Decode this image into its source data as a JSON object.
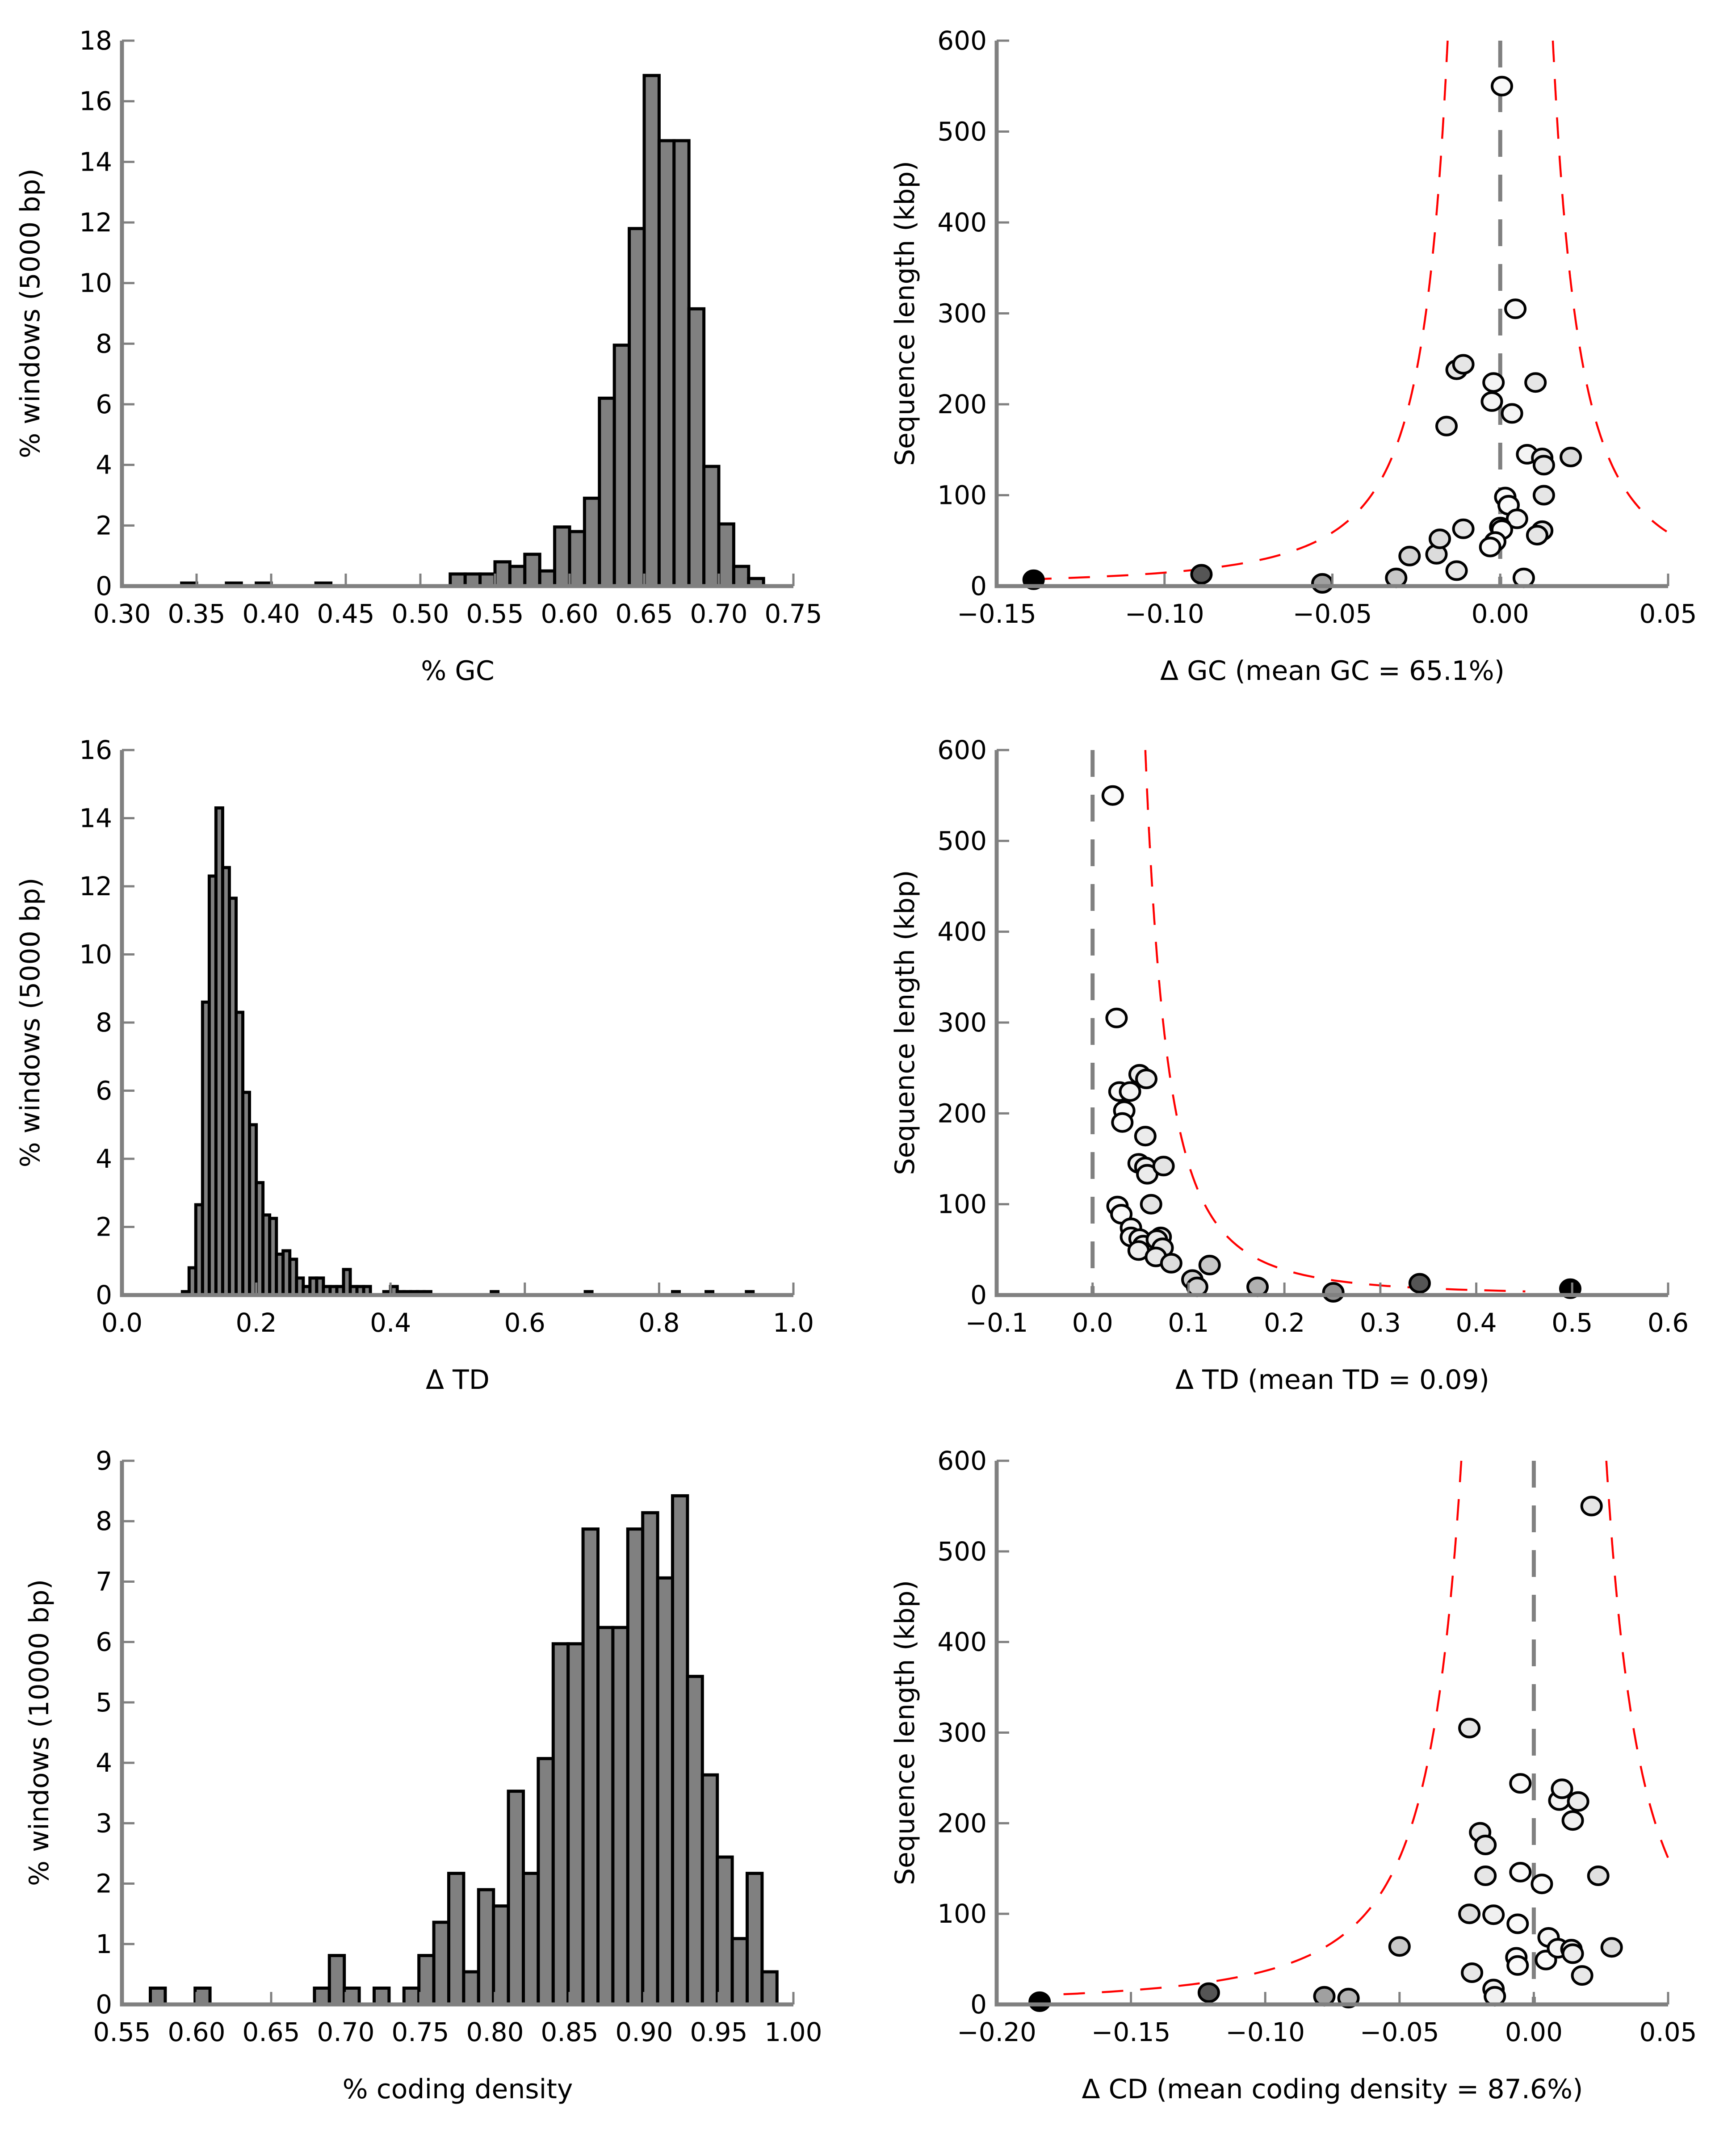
{
  "chart_data": [
    {
      "id": "gc_hist",
      "type": "bar",
      "subtype": "histogram",
      "xlabel": "% GC",
      "ylabel": "% windows (5000 bp)",
      "xlim": [
        0.3,
        0.75
      ],
      "ylim": [
        0,
        18
      ],
      "xticks": [
        "0.30",
        "0.35",
        "0.40",
        "0.45",
        "0.50",
        "0.55",
        "0.60",
        "0.65",
        "0.70",
        "0.75"
      ],
      "xtick_values": [
        0.3,
        0.35,
        0.4,
        0.45,
        0.5,
        0.55,
        0.6,
        0.65,
        0.7,
        0.75
      ],
      "yticks": [
        "0",
        "2",
        "4",
        "6",
        "8",
        "10",
        "12",
        "14",
        "16",
        "18"
      ],
      "ytick_values": [
        0,
        2,
        4,
        6,
        8,
        10,
        12,
        14,
        16,
        18
      ],
      "bin_width": 0.01,
      "bins": [
        {
          "x": 0.34,
          "v": 0.1
        },
        {
          "x": 0.37,
          "v": 0.1
        },
        {
          "x": 0.39,
          "v": 0.1
        },
        {
          "x": 0.43,
          "v": 0.1
        },
        {
          "x": 0.52,
          "v": 0.4
        },
        {
          "x": 0.53,
          "v": 0.4
        },
        {
          "x": 0.54,
          "v": 0.4
        },
        {
          "x": 0.55,
          "v": 0.8
        },
        {
          "x": 0.56,
          "v": 0.65
        },
        {
          "x": 0.57,
          "v": 1.05
        },
        {
          "x": 0.58,
          "v": 0.5
        },
        {
          "x": 0.59,
          "v": 1.95
        },
        {
          "x": 0.6,
          "v": 1.8
        },
        {
          "x": 0.61,
          "v": 2.9
        },
        {
          "x": 0.62,
          "v": 6.2
        },
        {
          "x": 0.63,
          "v": 7.95
        },
        {
          "x": 0.64,
          "v": 11.8
        },
        {
          "x": 0.65,
          "v": 16.85
        },
        {
          "x": 0.66,
          "v": 14.7
        },
        {
          "x": 0.67,
          "v": 14.7
        },
        {
          "x": 0.68,
          "v": 9.15
        },
        {
          "x": 0.69,
          "v": 3.95
        },
        {
          "x": 0.7,
          "v": 2.05
        },
        {
          "x": 0.71,
          "v": 0.65
        },
        {
          "x": 0.72,
          "v": 0.25
        }
      ]
    },
    {
      "id": "gc_scatter",
      "type": "scatter",
      "xlabel": "Δ GC (mean GC = 65.1%)",
      "ylabel": "Sequence length (kbp)",
      "xlim": [
        -0.15,
        0.05
      ],
      "ylim": [
        0,
        600
      ],
      "xticks": [
        "−0.15",
        "−0.10",
        "−0.05",
        "0.00",
        "0.05"
      ],
      "xtick_values": [
        -0.15,
        -0.1,
        -0.05,
        0.0,
        0.05
      ],
      "yticks": [
        "0",
        "100",
        "200",
        "300",
        "400",
        "500",
        "600"
      ],
      "ytick_values": [
        0,
        100,
        200,
        300,
        400,
        500,
        600
      ],
      "reference_line_x": 0.0,
      "ci_center": 0.0,
      "ci_k": 1.2,
      "ci_left_only_from": -0.088,
      "points": [
        {
          "x": -0.139,
          "y": 7,
          "c": "#000000"
        },
        {
          "x": -0.089,
          "y": 13,
          "c": "#555555"
        },
        {
          "x": -0.053,
          "y": 3,
          "c": "#a0a0a0"
        },
        {
          "x": -0.031,
          "y": 9,
          "c": "#c8c8c8"
        },
        {
          "x": -0.027,
          "y": 33,
          "c": "#d4d4d4"
        },
        {
          "x": -0.019,
          "y": 35,
          "c": "#dcdcdc"
        },
        {
          "x": -0.018,
          "y": 52,
          "c": "#dcdcdc"
        },
        {
          "x": -0.013,
          "y": 17,
          "c": "#e6e6e6"
        },
        {
          "x": -0.011,
          "y": 63,
          "c": "#e6e6e6"
        },
        {
          "x": -0.016,
          "y": 176,
          "c": "#e6e6e6"
        },
        {
          "x": -0.013,
          "y": 238,
          "c": "#e6e6e6"
        },
        {
          "x": -0.011,
          "y": 244,
          "c": "#e6e6e6"
        },
        {
          "x": -0.002,
          "y": 224,
          "c": "#f4f4f4"
        },
        {
          "x": -0.0025,
          "y": 203,
          "c": "#f4f4f4"
        },
        {
          "x": 0.0035,
          "y": 190,
          "c": "#f4f4f4"
        },
        {
          "x": 0.0045,
          "y": 305,
          "c": "#f8f8f8"
        },
        {
          "x": 0.0005,
          "y": 550,
          "c": "#f8f8f8"
        },
        {
          "x": 0.0015,
          "y": 98,
          "c": "#fafafa"
        },
        {
          "x": 0.0025,
          "y": 89,
          "c": "#fafafa"
        },
        {
          "x": 0.005,
          "y": 74,
          "c": "#f4f4f4"
        },
        {
          "x": 0.0,
          "y": 65,
          "c": "#fafafa"
        },
        {
          "x": 0.0005,
          "y": 62,
          "c": "#fafafa"
        },
        {
          "x": -0.0015,
          "y": 49,
          "c": "#fafafa"
        },
        {
          "x": -0.003,
          "y": 43,
          "c": "#fafafa"
        },
        {
          "x": 0.007,
          "y": 9,
          "c": "#f2f2f2"
        },
        {
          "x": 0.008,
          "y": 145,
          "c": "#f4f4f4"
        },
        {
          "x": 0.0105,
          "y": 224,
          "c": "#e6e6e6"
        },
        {
          "x": 0.0125,
          "y": 141,
          "c": "#e6e6e6"
        },
        {
          "x": 0.013,
          "y": 133,
          "c": "#e6e6e6"
        },
        {
          "x": 0.013,
          "y": 100,
          "c": "#e6e6e6"
        },
        {
          "x": 0.0125,
          "y": 61,
          "c": "#e6e6e6"
        },
        {
          "x": 0.011,
          "y": 56,
          "c": "#e6e6e6"
        },
        {
          "x": 0.021,
          "y": 142,
          "c": "#dcdcdc"
        }
      ]
    },
    {
      "id": "td_hist",
      "type": "bar",
      "subtype": "histogram",
      "xlabel": "Δ TD",
      "ylabel": "% windows (5000 bp)",
      "xlim": [
        0.0,
        1.0
      ],
      "ylim": [
        0,
        16
      ],
      "xticks": [
        "0.0",
        "0.2",
        "0.4",
        "0.6",
        "0.8",
        "1.0"
      ],
      "xtick_values": [
        0.0,
        0.2,
        0.4,
        0.6,
        0.8,
        1.0
      ],
      "yticks": [
        "0",
        "2",
        "4",
        "6",
        "8",
        "10",
        "12",
        "14",
        "16"
      ],
      "ytick_values": [
        0,
        2,
        4,
        6,
        8,
        10,
        12,
        14,
        16
      ],
      "bin_width": 0.01,
      "bins": [
        {
          "x": 0.09,
          "v": 0.1
        },
        {
          "x": 0.1,
          "v": 0.8
        },
        {
          "x": 0.11,
          "v": 2.65
        },
        {
          "x": 0.12,
          "v": 8.6
        },
        {
          "x": 0.13,
          "v": 12.3
        },
        {
          "x": 0.14,
          "v": 14.3
        },
        {
          "x": 0.15,
          "v": 12.55
        },
        {
          "x": 0.16,
          "v": 11.65
        },
        {
          "x": 0.17,
          "v": 8.3
        },
        {
          "x": 0.18,
          "v": 5.95
        },
        {
          "x": 0.19,
          "v": 5.0
        },
        {
          "x": 0.2,
          "v": 3.3
        },
        {
          "x": 0.21,
          "v": 2.35
        },
        {
          "x": 0.22,
          "v": 2.25
        },
        {
          "x": 0.23,
          "v": 1.2
        },
        {
          "x": 0.24,
          "v": 1.3
        },
        {
          "x": 0.25,
          "v": 1.05
        },
        {
          "x": 0.26,
          "v": 0.5
        },
        {
          "x": 0.27,
          "v": 0.25
        },
        {
          "x": 0.28,
          "v": 0.5
        },
        {
          "x": 0.29,
          "v": 0.5
        },
        {
          "x": 0.3,
          "v": 0.25
        },
        {
          "x": 0.31,
          "v": 0.25
        },
        {
          "x": 0.32,
          "v": 0.25
        },
        {
          "x": 0.33,
          "v": 0.75
        },
        {
          "x": 0.34,
          "v": 0.25
        },
        {
          "x": 0.35,
          "v": 0.25
        },
        {
          "x": 0.36,
          "v": 0.25
        },
        {
          "x": 0.39,
          "v": 0.1
        },
        {
          "x": 0.4,
          "v": 0.25
        },
        {
          "x": 0.41,
          "v": 0.1
        },
        {
          "x": 0.42,
          "v": 0.1
        },
        {
          "x": 0.43,
          "v": 0.1
        },
        {
          "x": 0.44,
          "v": 0.1
        },
        {
          "x": 0.45,
          "v": 0.1
        },
        {
          "x": 0.55,
          "v": 0.1
        },
        {
          "x": 0.69,
          "v": 0.1
        },
        {
          "x": 0.82,
          "v": 0.1
        },
        {
          "x": 0.87,
          "v": 0.1
        },
        {
          "x": 0.93,
          "v": 0.1
        }
      ]
    },
    {
      "id": "td_scatter",
      "type": "scatter",
      "xlabel": "Δ TD (mean TD = 0.09)",
      "ylabel": "Sequence length (kbp)",
      "xlim": [
        -0.1,
        0.6
      ],
      "ylim": [
        0,
        600
      ],
      "xticks": [
        "−0.1",
        "0.0",
        "0.1",
        "0.2",
        "0.3",
        "0.4",
        "0.5",
        "0.6"
      ],
      "xtick_values": [
        -0.1,
        0.0,
        0.1,
        0.2,
        0.3,
        0.4,
        0.5,
        0.6
      ],
      "yticks": [
        "0",
        "100",
        "200",
        "300",
        "400",
        "500",
        "600"
      ],
      "ytick_values": [
        0,
        100,
        200,
        300,
        400,
        500,
        600
      ],
      "reference_line_x": 0.0,
      "ci_center": 0.0,
      "ci_k": 3.9,
      "ci_one_sided": true,
      "points": [
        {
          "x": 0.021,
          "y": 550,
          "c": "#fafafa"
        },
        {
          "x": 0.025,
          "y": 305,
          "c": "#fafafa"
        },
        {
          "x": 0.049,
          "y": 243,
          "c": "#ececec"
        },
        {
          "x": 0.056,
          "y": 238,
          "c": "#ececec"
        },
        {
          "x": 0.028,
          "y": 224,
          "c": "#fafafa"
        },
        {
          "x": 0.039,
          "y": 224,
          "c": "#f4f4f4"
        },
        {
          "x": 0.033,
          "y": 203,
          "c": "#fafafa"
        },
        {
          "x": 0.031,
          "y": 190,
          "c": "#fafafa"
        },
        {
          "x": 0.055,
          "y": 175,
          "c": "#ececec"
        },
        {
          "x": 0.048,
          "y": 145,
          "c": "#f0f0f0"
        },
        {
          "x": 0.055,
          "y": 141,
          "c": "#ececec"
        },
        {
          "x": 0.057,
          "y": 133,
          "c": "#ececec"
        },
        {
          "x": 0.074,
          "y": 142,
          "c": "#e4e4e4"
        },
        {
          "x": 0.026,
          "y": 98,
          "c": "#fafafa"
        },
        {
          "x": 0.03,
          "y": 89,
          "c": "#fafafa"
        },
        {
          "x": 0.061,
          "y": 100,
          "c": "#e4e4e4"
        },
        {
          "x": 0.04,
          "y": 74,
          "c": "#f4f4f4"
        },
        {
          "x": 0.04,
          "y": 64,
          "c": "#f4f4f4"
        },
        {
          "x": 0.049,
          "y": 62,
          "c": "#f0f0f0"
        },
        {
          "x": 0.053,
          "y": 55,
          "c": "#eeeeee"
        },
        {
          "x": 0.048,
          "y": 49,
          "c": "#eeeeee"
        },
        {
          "x": 0.071,
          "y": 64,
          "c": "#e8e8e8"
        },
        {
          "x": 0.067,
          "y": 61,
          "c": "#e8e8e8"
        },
        {
          "x": 0.073,
          "y": 52,
          "c": "#e4e4e4"
        },
        {
          "x": 0.066,
          "y": 42,
          "c": "#e8e8e8"
        },
        {
          "x": 0.082,
          "y": 35,
          "c": "#dcdcdc"
        },
        {
          "x": 0.122,
          "y": 33,
          "c": "#c8c8c8"
        },
        {
          "x": 0.104,
          "y": 17,
          "c": "#d0d0d0"
        },
        {
          "x": 0.109,
          "y": 9,
          "c": "#d0d0d0"
        },
        {
          "x": 0.172,
          "y": 9,
          "c": "#b0b0b0"
        },
        {
          "x": 0.251,
          "y": 3,
          "c": "#909090"
        },
        {
          "x": 0.341,
          "y": 13,
          "c": "#555555"
        },
        {
          "x": 0.498,
          "y": 7,
          "c": "#000000"
        }
      ]
    },
    {
      "id": "cd_hist",
      "type": "bar",
      "subtype": "histogram",
      "xlabel": "% coding density",
      "ylabel": "% windows (10000 bp)",
      "xlim": [
        0.55,
        1.0
      ],
      "ylim": [
        0,
        9
      ],
      "xticks": [
        "0.55",
        "0.60",
        "0.65",
        "0.70",
        "0.75",
        "0.80",
        "0.85",
        "0.90",
        "0.95",
        "1.00"
      ],
      "xtick_values": [
        0.55,
        0.6,
        0.65,
        0.7,
        0.75,
        0.8,
        0.85,
        0.9,
        0.95,
        1.0
      ],
      "yticks": [
        "0",
        "1",
        "2",
        "3",
        "4",
        "5",
        "6",
        "7",
        "8",
        "9"
      ],
      "ytick_values": [
        0,
        1,
        2,
        3,
        4,
        5,
        6,
        7,
        8,
        9
      ],
      "bin_width": 0.01,
      "bins": [
        {
          "x": 0.569,
          "v": 0.27
        },
        {
          "x": 0.599,
          "v": 0.27
        },
        {
          "x": 0.679,
          "v": 0.27
        },
        {
          "x": 0.689,
          "v": 0.81
        },
        {
          "x": 0.699,
          "v": 0.27
        },
        {
          "x": 0.719,
          "v": 0.27
        },
        {
          "x": 0.739,
          "v": 0.27
        },
        {
          "x": 0.749,
          "v": 0.81
        },
        {
          "x": 0.759,
          "v": 1.36
        },
        {
          "x": 0.769,
          "v": 2.17
        },
        {
          "x": 0.779,
          "v": 0.54
        },
        {
          "x": 0.789,
          "v": 1.9
        },
        {
          "x": 0.799,
          "v": 1.63
        },
        {
          "x": 0.809,
          "v": 3.53
        },
        {
          "x": 0.819,
          "v": 2.17
        },
        {
          "x": 0.829,
          "v": 4.07
        },
        {
          "x": 0.839,
          "v": 5.97
        },
        {
          "x": 0.849,
          "v": 5.97
        },
        {
          "x": 0.859,
          "v": 7.87
        },
        {
          "x": 0.869,
          "v": 6.24
        },
        {
          "x": 0.879,
          "v": 6.24
        },
        {
          "x": 0.889,
          "v": 7.87
        },
        {
          "x": 0.899,
          "v": 8.14
        },
        {
          "x": 0.909,
          "v": 7.06
        },
        {
          "x": 0.919,
          "v": 8.42
        },
        {
          "x": 0.929,
          "v": 5.43
        },
        {
          "x": 0.939,
          "v": 3.8
        },
        {
          "x": 0.949,
          "v": 2.44
        },
        {
          "x": 0.959,
          "v": 1.09
        },
        {
          "x": 0.969,
          "v": 2.17
        },
        {
          "x": 0.979,
          "v": 0.54
        }
      ]
    },
    {
      "id": "cd_scatter",
      "type": "scatter",
      "xlabel": "Δ CD (mean coding density = 87.6%)",
      "ylabel": "Sequence length (kbp)",
      "xlim": [
        -0.2,
        0.05
      ],
      "ylim": [
        0,
        600
      ],
      "xticks": [
        "−0.20",
        "−0.15",
        "−0.10",
        "−0.05",
        "0.00",
        "0.05"
      ],
      "xtick_values": [
        -0.2,
        -0.15,
        -0.1,
        -0.05,
        0.0,
        0.05
      ],
      "yticks": [
        "0",
        "100",
        "200",
        "300",
        "400",
        "500",
        "600"
      ],
      "ytick_values": [
        0,
        100,
        200,
        300,
        400,
        500,
        600
      ],
      "reference_line_x": 0.0,
      "ci_center": 0.0,
      "ci_k": 2.3,
      "points": [
        {
          "x": -0.184,
          "y": 3,
          "c": "#000000"
        },
        {
          "x": -0.121,
          "y": 13,
          "c": "#555555"
        },
        {
          "x": -0.078,
          "y": 9,
          "c": "#a0a0a0"
        },
        {
          "x": -0.069,
          "y": 7,
          "c": "#b4b4b4"
        },
        {
          "x": -0.05,
          "y": 64,
          "c": "#c8c8c8"
        },
        {
          "x": -0.024,
          "y": 305,
          "c": "#e6e6e6"
        },
        {
          "x": -0.024,
          "y": 100,
          "c": "#e0e0e0"
        },
        {
          "x": -0.023,
          "y": 35,
          "c": "#e6e6e6"
        },
        {
          "x": -0.02,
          "y": 190,
          "c": "#e6e6e6"
        },
        {
          "x": -0.018,
          "y": 176,
          "c": "#e6e6e6"
        },
        {
          "x": -0.018,
          "y": 142,
          "c": "#e6e6e6"
        },
        {
          "x": -0.015,
          "y": 99,
          "c": "#f0f0f0"
        },
        {
          "x": -0.015,
          "y": 17,
          "c": "#f0f0f0"
        },
        {
          "x": -0.0145,
          "y": 9,
          "c": "#f0f0f0"
        },
        {
          "x": -0.005,
          "y": 244,
          "c": "#fafafa"
        },
        {
          "x": -0.005,
          "y": 146,
          "c": "#fafafa"
        },
        {
          "x": -0.006,
          "y": 89,
          "c": "#fafafa"
        },
        {
          "x": -0.0065,
          "y": 52,
          "c": "#fafafa"
        },
        {
          "x": -0.006,
          "y": 43,
          "c": "#fafafa"
        },
        {
          "x": 0.003,
          "y": 133,
          "c": "#fafafa"
        },
        {
          "x": 0.0045,
          "y": 49,
          "c": "#fafafa"
        },
        {
          "x": 0.0055,
          "y": 74,
          "c": "#f4f4f4"
        },
        {
          "x": 0.009,
          "y": 62,
          "c": "#f4f4f4"
        },
        {
          "x": 0.0095,
          "y": 225,
          "c": "#f4f4f4"
        },
        {
          "x": 0.0105,
          "y": 238,
          "c": "#f0f0f0"
        },
        {
          "x": 0.0145,
          "y": 203,
          "c": "#f0f0f0"
        },
        {
          "x": 0.0165,
          "y": 224,
          "c": "#ececec"
        },
        {
          "x": 0.014,
          "y": 61,
          "c": "#ececec"
        },
        {
          "x": 0.0145,
          "y": 56,
          "c": "#ececec"
        },
        {
          "x": 0.018,
          "y": 32,
          "c": "#e8e8e8"
        },
        {
          "x": 0.0215,
          "y": 550,
          "c": "#e6e6e6"
        },
        {
          "x": 0.024,
          "y": 142,
          "c": "#e0e0e0"
        },
        {
          "x": 0.029,
          "y": 63,
          "c": "#dcdcdc"
        }
      ]
    }
  ]
}
